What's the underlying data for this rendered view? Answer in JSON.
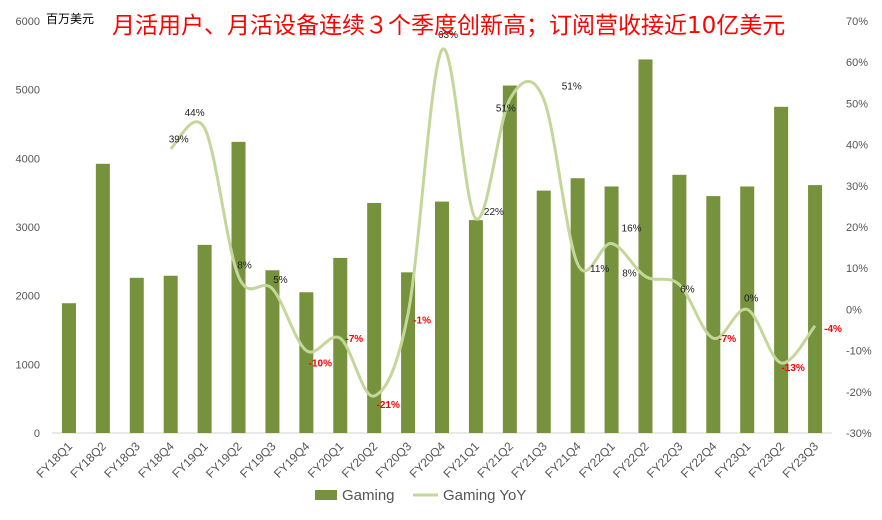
{
  "chart_data": {
    "type": "bar",
    "title": "月活用户、月活设备连续３个季度创新高；订阅营收接近10亿美元",
    "unit_label": "百万美元",
    "categories": [
      "FY18Q1",
      "FY18Q2",
      "FY18Q3",
      "FY18Q4",
      "FY19Q1",
      "FY19Q2",
      "FY19Q3",
      "FY19Q4",
      "FY20Q1",
      "FY20Q2",
      "FY20Q3",
      "FY20Q4",
      "FY21Q1",
      "FY21Q2",
      "FY21Q3",
      "FY21Q4",
      "FY22Q1",
      "FY22Q2",
      "FY22Q3",
      "FY22Q4",
      "FY23Q1",
      "FY23Q2",
      "FY23Q3"
    ],
    "series": [
      {
        "name": "Gaming",
        "kind": "bar",
        "axis": "left",
        "color": "#76923c",
        "values": [
          1890,
          3920,
          2260,
          2290,
          2740,
          4240,
          2370,
          2050,
          2550,
          3350,
          2340,
          3370,
          3100,
          5060,
          3530,
          3710,
          3590,
          5440,
          3760,
          3450,
          3590,
          4750,
          3610
        ]
      },
      {
        "name": "Gaming YoY",
        "kind": "line",
        "axis": "right",
        "color": "#c4d79b",
        "values": [
          null,
          null,
          null,
          39,
          44,
          8,
          5,
          -10,
          -7,
          -21,
          -1,
          63,
          22,
          51,
          51,
          11,
          16,
          8,
          6,
          -7,
          0,
          -13,
          -4
        ],
        "labels": [
          "",
          "",
          "",
          "39%",
          "44%",
          "8%",
          "5%",
          "-10%",
          "-7%",
          "-21%",
          "-1%",
          "63%",
          "22%",
          "51%",
          "51%",
          "11%",
          "16%",
          "8%",
          "6%",
          "-7%",
          "0%",
          "-13%",
          "-4%"
        ]
      }
    ],
    "y_left": {
      "min": 0,
      "max": 6000,
      "ticks": [
        "0",
        "1000",
        "2000",
        "3000",
        "4000",
        "5000",
        "6000"
      ]
    },
    "y_right": {
      "min": -30,
      "max": 70,
      "ticks": [
        "-30%",
        "-20%",
        "-10%",
        "0%",
        "10%",
        "20%",
        "30%",
        "40%",
        "50%",
        "60%",
        "70%"
      ]
    },
    "grid": false,
    "legend_position": "bottom",
    "negative_label_color": "#ff0000",
    "positive_label_color": "#222222"
  }
}
